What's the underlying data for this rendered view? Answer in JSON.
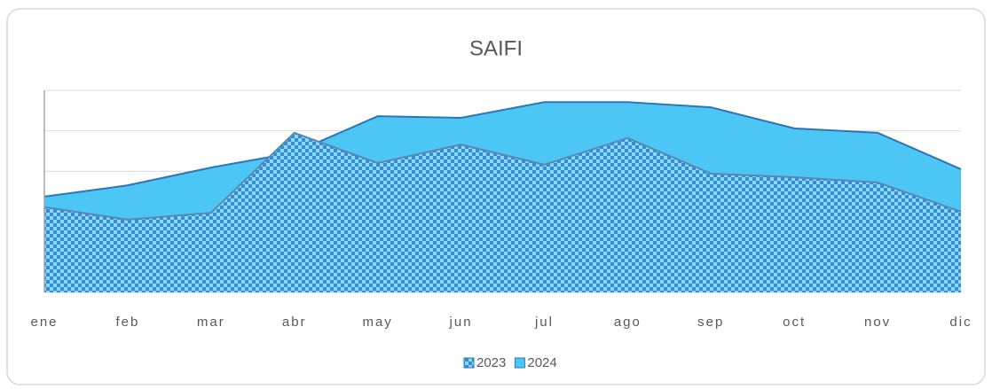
{
  "chart_data": {
    "type": "area",
    "title": "SAIFI",
    "categories": [
      "ene",
      "feb",
      "mar",
      "abr",
      "may",
      "jun",
      "jul",
      "ago",
      "sep",
      "oct",
      "nov",
      "dic"
    ],
    "series": [
      {
        "name": "2023",
        "color": "#2f8fd6",
        "pattern": "checker",
        "values": [
          2.11,
          1.8,
          1.97,
          3.95,
          3.2,
          3.66,
          3.16,
          3.82,
          2.94,
          2.85,
          2.72,
          2.0
        ]
      },
      {
        "name": "2024",
        "color": "#4cc6f4",
        "values": [
          2.37,
          2.65,
          3.09,
          3.46,
          4.36,
          4.32,
          4.71,
          4.71,
          4.58,
          4.06,
          3.95,
          3.05
        ]
      }
    ],
    "ylim": [
      0,
      5
    ],
    "yticks": [
      0,
      1,
      2,
      3,
      4,
      5
    ],
    "grid": true,
    "legend": "bottom"
  }
}
